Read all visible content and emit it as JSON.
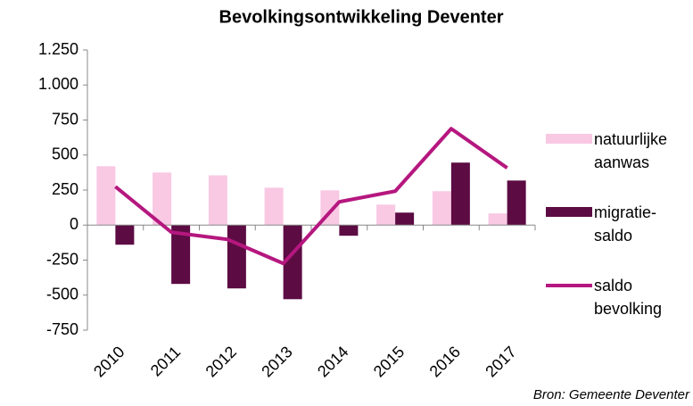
{
  "chart_data": {
    "type": "bar_line",
    "title": "Bevolkingsontwikkeling Deventer",
    "source": "Bron: Gemeente Deventer",
    "categories": [
      "2010",
      "2011",
      "2012",
      "2013",
      "2014",
      "2015",
      "2016",
      "2017"
    ],
    "series": [
      {
        "name": "natuurlijke aanwas",
        "type": "bar",
        "color": "#f9c8e3",
        "values": [
          420,
          375,
          355,
          267,
          248,
          146,
          242,
          83
        ]
      },
      {
        "name": "migratie-saldo",
        "type": "bar",
        "color": "#5c0b43",
        "values": [
          -140,
          -420,
          -452,
          -529,
          -76,
          89,
          446,
          318
        ]
      },
      {
        "name": "saldo bevolking",
        "type": "line",
        "color": "#b5177f",
        "values": [
          274,
          -51,
          -102,
          -274,
          166,
          242,
          688,
          408
        ]
      }
    ],
    "ylim": [
      -750,
      1250
    ],
    "yticks": [
      -750,
      -500,
      -250,
      0,
      250,
      500,
      750,
      {
        "value": 1000,
        "label": "1.000"
      },
      {
        "value": 1250,
        "label": "1.250"
      }
    ],
    "legend": "right"
  }
}
